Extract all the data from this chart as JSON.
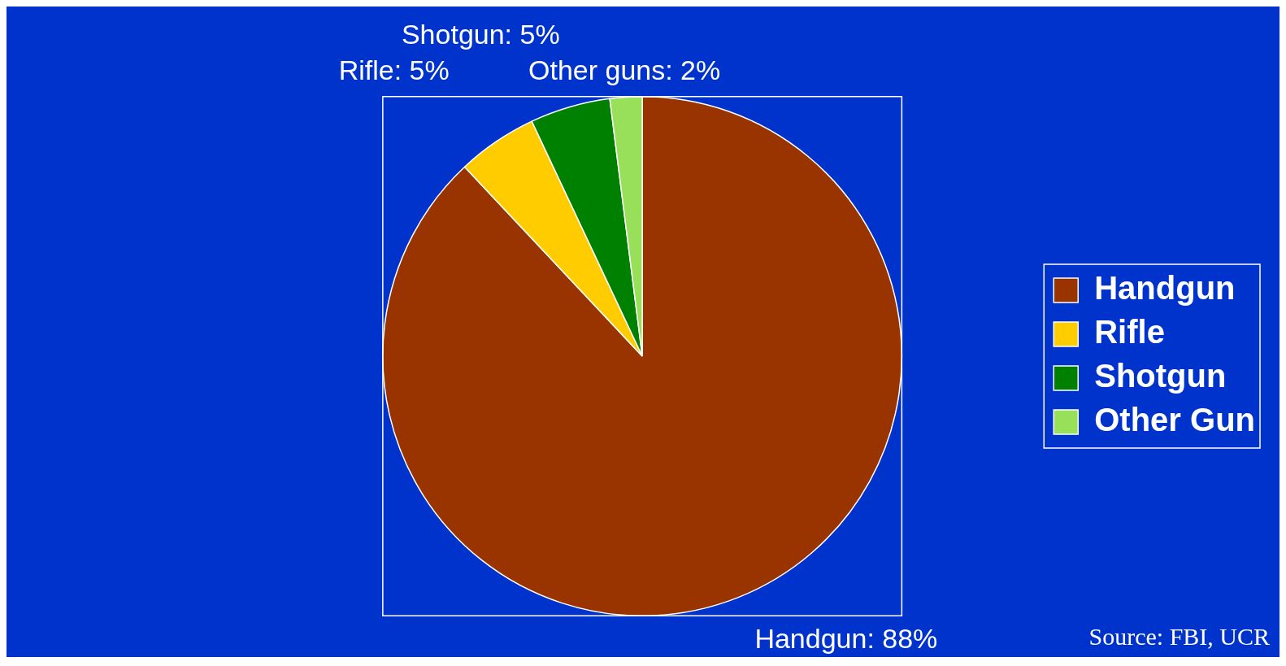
{
  "chart_data": {
    "type": "pie",
    "categories": [
      "Handgun",
      "Rifle",
      "Shotgun",
      "Other Gun"
    ],
    "values": [
      88,
      5,
      5,
      2
    ],
    "colors": [
      "#993300",
      "#ffcc00",
      "#008000",
      "#99e05a"
    ],
    "value_labels": [
      "Handgun: 88%",
      "Rifle: 5%",
      "Shotgun: 5%",
      "Other guns: 2%"
    ],
    "legend": "right",
    "annotations": [
      "Source: FBI, UCR"
    ]
  }
}
